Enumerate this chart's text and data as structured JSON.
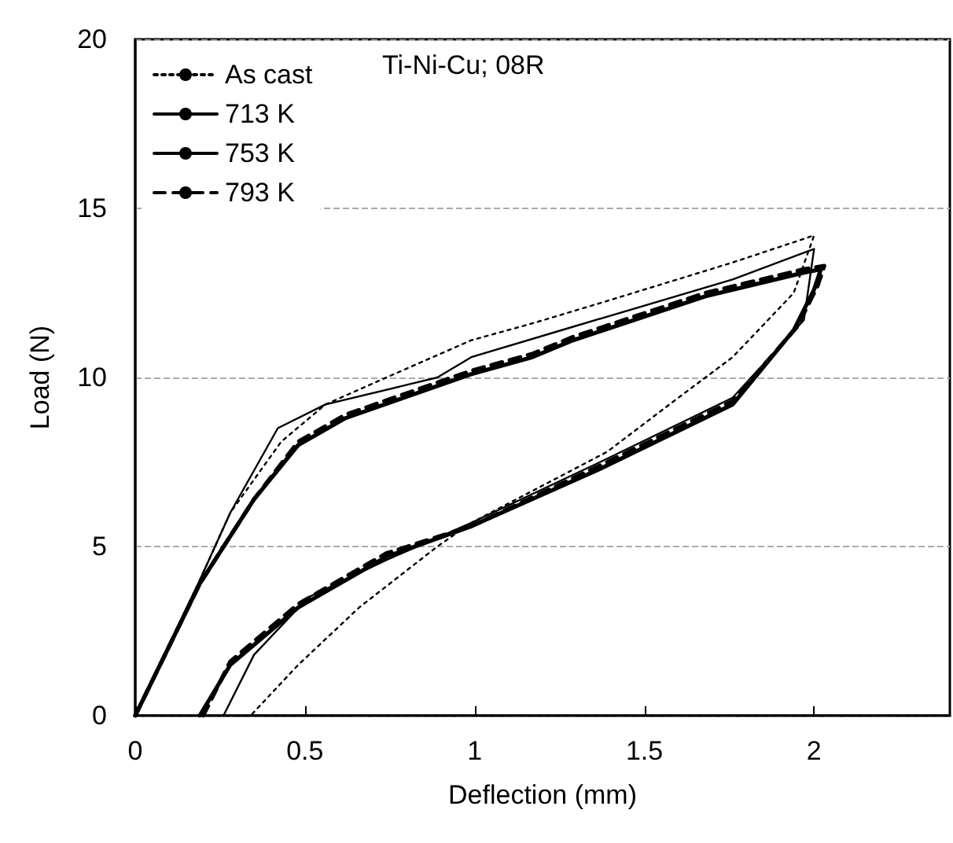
{
  "chart_data": {
    "type": "line",
    "xlabel": "Deflection (mm)",
    "ylabel": "Load (N)",
    "xlim": [
      0,
      2.4
    ],
    "xticks": [
      0,
      0.5,
      1,
      1.5,
      2
    ],
    "ylim": [
      0,
      20
    ],
    "yticks": [
      0,
      5,
      10,
      15,
      20
    ],
    "grid": "y",
    "legend": "top left",
    "marker": "none",
    "annotations": [
      "Ti-Ni-Cu; 08R"
    ],
    "series": [
      {
        "name": "As cast",
        "color": "#000000",
        "line_style": "dotted",
        "x": [
          0,
          0.19,
          0.28,
          0.43,
          0.56,
          0.74,
          0.99,
          1.17,
          1.37,
          1.76,
          2.0,
          1.94,
          1.76,
          1.6,
          1.39,
          0.99,
          0.89,
          0.66,
          0.48,
          0.34
        ],
        "values": [
          0,
          4.0,
          6.0,
          8.1,
          9.2,
          10.0,
          11.1,
          11.6,
          12.2,
          13.4,
          14.2,
          12.5,
          10.6,
          9.4,
          7.8,
          5.7,
          5.0,
          3.2,
          1.5,
          0
        ]
      },
      {
        "name": "713 K",
        "color": "#000000",
        "line_style": "solid",
        "x": [
          0,
          0.19,
          0.28,
          0.42,
          0.56,
          0.89,
          0.99,
          1.29,
          1.76,
          2.0,
          1.97,
          1.76,
          1.37,
          0.99,
          0.74,
          0.51,
          0.35,
          0.26
        ],
        "values": [
          0,
          4.0,
          6.0,
          8.5,
          9.2,
          10.0,
          10.6,
          11.5,
          12.9,
          13.8,
          11.7,
          9.4,
          7.5,
          5.7,
          4.6,
          3.5,
          1.8,
          0
        ]
      },
      {
        "name": "753 K",
        "color": "#000000",
        "line_style": "solid",
        "x": [
          0,
          0.19,
          0.35,
          0.48,
          0.62,
          0.99,
          1.17,
          1.29,
          1.68,
          1.97,
          2.02,
          2.0,
          1.94,
          1.76,
          1.37,
          0.99,
          0.74,
          0.48,
          0.28,
          0.19
        ],
        "values": [
          0,
          3.9,
          6.4,
          8.0,
          8.8,
          10.1,
          10.6,
          11.1,
          12.4,
          13.1,
          13.2,
          12.6,
          11.4,
          9.2,
          7.3,
          5.6,
          4.7,
          3.2,
          1.5,
          0
        ]
      },
      {
        "name": "793 K",
        "color": "#000000",
        "line_style": "dashed",
        "x": [
          0,
          0.19,
          0.35,
          0.48,
          0.62,
          0.99,
          1.17,
          1.29,
          1.68,
          1.97,
          2.03,
          2.01,
          1.95,
          1.76,
          1.37,
          0.99,
          0.74,
          0.48,
          0.28,
          0.2
        ],
        "values": [
          0,
          3.9,
          6.4,
          8.1,
          8.9,
          10.2,
          10.7,
          11.2,
          12.5,
          13.2,
          13.3,
          12.7,
          11.5,
          9.3,
          7.4,
          5.6,
          4.8,
          3.3,
          1.6,
          0
        ]
      }
    ]
  }
}
